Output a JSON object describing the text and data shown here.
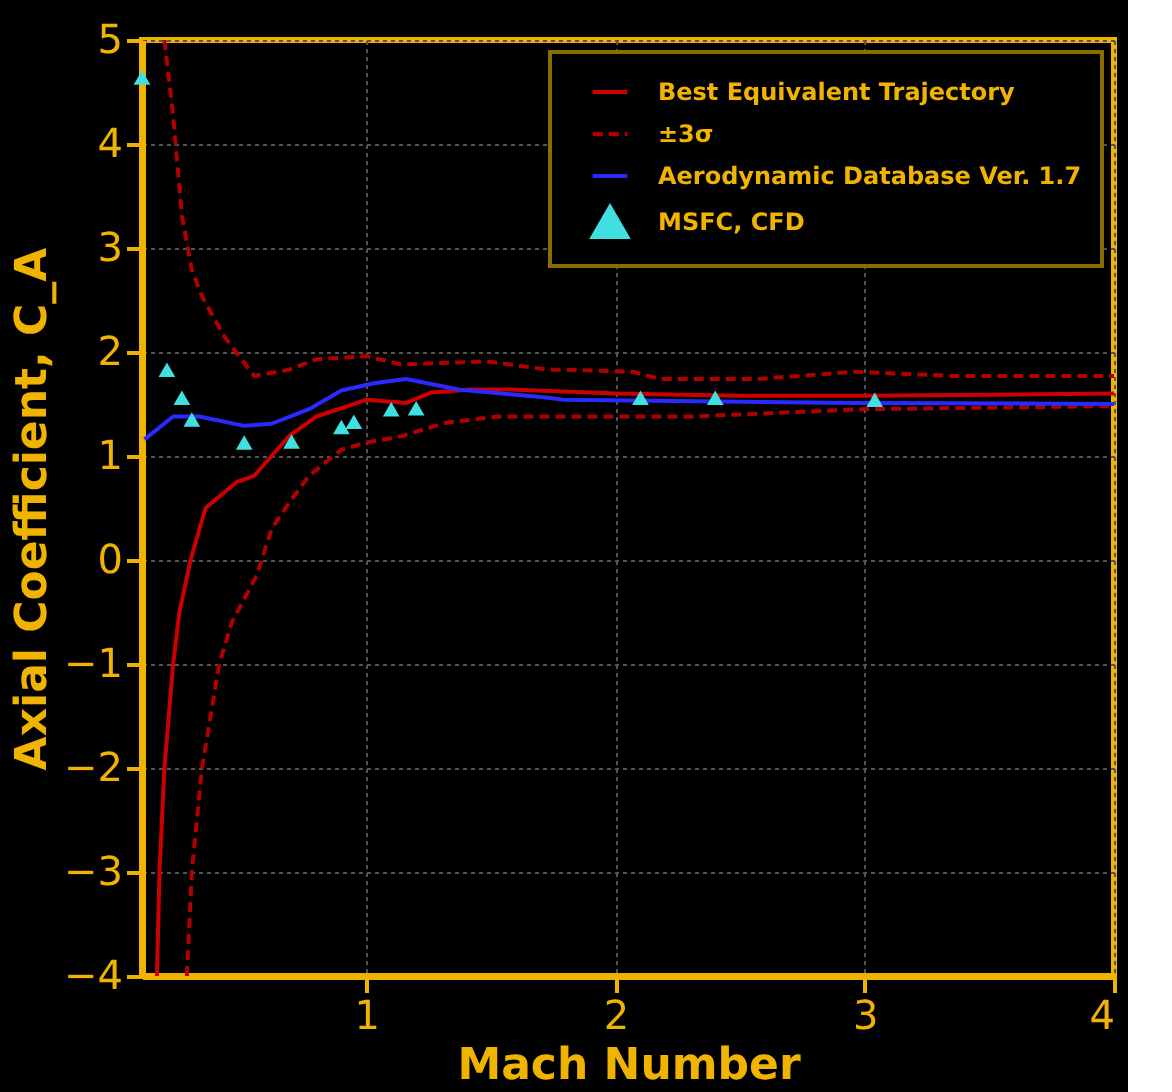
{
  "chart_data": {
    "type": "line",
    "xlabel": "Mach Number",
    "ylabel": "Axial Coefficient, C_A",
    "xlim": [
      0.1,
      4
    ],
    "xticks": [
      1,
      2,
      3,
      4
    ],
    "ylim": [
      -4,
      5
    ],
    "yticks": [
      -4,
      -3,
      -2,
      -1,
      0,
      1,
      2,
      3,
      4,
      5
    ],
    "grid": true,
    "legend": "top right",
    "series": [
      {
        "name": "Best Equivalent Trajectory",
        "color": "#cc0000",
        "line_style": "solid",
        "x": [
          0.16,
          0.17,
          0.19,
          0.225,
          0.25,
          0.295,
          0.355,
          0.48,
          0.55,
          0.69,
          0.8,
          1.0,
          1.16,
          1.26,
          1.42,
          1.58,
          2.0,
          2.5,
          3.0,
          3.5,
          4.0
        ],
        "values": [
          -4,
          -3,
          -2,
          -1,
          -0.5,
          0,
          0.5,
          0.75,
          0.81,
          1.19,
          1.38,
          1.54,
          1.51,
          1.61,
          1.64,
          1.64,
          1.6,
          1.58,
          1.58,
          1.59,
          1.6
        ]
      },
      {
        "name": "±3σ",
        "color": "#b00000",
        "line_style": "dashed",
        "x": [
          0.19,
          0.225,
          0.26,
          0.3,
          0.34,
          0.43,
          0.55,
          0.69,
          0.8,
          1.0,
          1.14,
          1.48,
          1.73,
          1.79,
          2.07,
          2.18,
          2.57,
          2.96,
          3.35,
          4.0
        ],
        "values": [
          5,
          4.27,
          3.31,
          2.79,
          2.54,
          2.15,
          1.77,
          1.83,
          1.93,
          1.96,
          1.88,
          1.91,
          1.83,
          1.83,
          1.81,
          1.74,
          1.74,
          1.81,
          1.77,
          1.77
        ]
      },
      {
        "color": "#b00000",
        "line_style": "dashed",
        "x": [
          0.28,
          0.3,
          0.34,
          0.41,
          0.46,
          0.56,
          0.62,
          0.69,
          0.77,
          0.9,
          1.0,
          1.14,
          1.32,
          1.53,
          1.94,
          2.31,
          2.99,
          4.0
        ],
        "values": [
          -4,
          -3,
          -2.01,
          -1.0,
          -0.6,
          -0.15,
          0.3,
          0.55,
          0.81,
          1.06,
          1.13,
          1.19,
          1.32,
          1.38,
          1.38,
          1.38,
          1.45,
          1.48
        ]
      },
      {
        "name": "Aerodynamic Database Ver. 1.7",
        "color": "#2a2aff",
        "line_style": "solid",
        "x": [
          0.11,
          0.225,
          0.33,
          0.51,
          0.62,
          0.77,
          0.9,
          1.03,
          1.16,
          1.37,
          1.73,
          1.79,
          2.96,
          4.0
        ],
        "values": [
          1.16,
          1.38,
          1.38,
          1.29,
          1.31,
          1.45,
          1.63,
          1.7,
          1.74,
          1.64,
          1.56,
          1.54,
          1.51,
          1.5
        ]
      },
      {
        "name": "MSFC, CFD",
        "type": "scatter",
        "marker": "triangle",
        "color": "#40e0e0",
        "x": [
          0.1,
          0.2,
          0.26,
          0.3,
          0.51,
          0.7,
          0.9,
          0.95,
          1.1,
          1.2,
          2.1,
          2.4,
          3.04
        ],
        "values": [
          4.64,
          1.83,
          1.56,
          1.35,
          1.13,
          1.14,
          1.28,
          1.33,
          1.45,
          1.46,
          1.56,
          1.56,
          1.54
        ]
      }
    ]
  }
}
